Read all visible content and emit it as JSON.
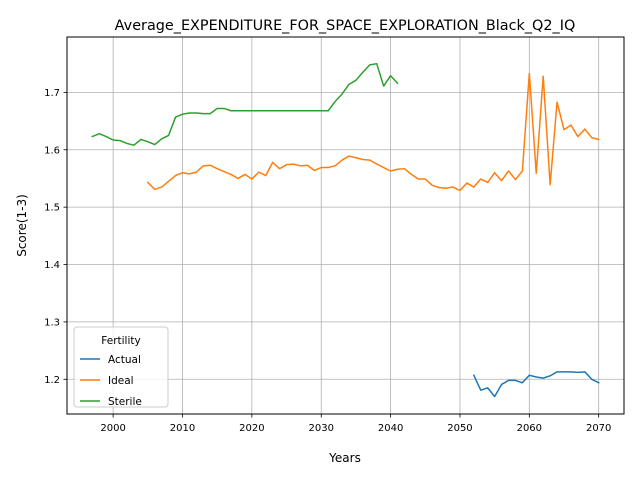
{
  "chart_data": {
    "type": "line",
    "title": "Average_EXPENDITURE_FOR_SPACE_EXPLORATION_Black_Q2_IQ",
    "xlabel": "Years",
    "ylabel": "Score(1-3)",
    "xlim": [
      1993.35,
      2073.65
    ],
    "ylim": [
      1.1395,
      1.7965
    ],
    "xticks": [
      2000,
      2010,
      2020,
      2030,
      2040,
      2050,
      2060,
      2070
    ],
    "xtick_labels": [
      "2000",
      "2010",
      "2020",
      "2030",
      "2040",
      "2050",
      "2060",
      "2070"
    ],
    "yticks": [
      1.2,
      1.3,
      1.4,
      1.5,
      1.6,
      1.7
    ],
    "ytick_labels": [
      "1.2",
      "1.3",
      "1.4",
      "1.5",
      "1.6",
      "1.7"
    ],
    "grid": true,
    "legend": {
      "title": "Fertility",
      "position": "lower-left"
    },
    "series": [
      {
        "name": "Actual",
        "color": "#1f77b4",
        "x": [
          2052,
          2053,
          2054,
          2055,
          2056,
          2057,
          2058,
          2059,
          2060,
          2061,
          2062,
          2063,
          2064,
          2065,
          2066,
          2067,
          2068,
          2069,
          2070
        ],
        "y": [
          1.207,
          1.181,
          1.185,
          1.17,
          1.191,
          1.198,
          1.198,
          1.194,
          1.207,
          1.204,
          1.202,
          1.206,
          1.213,
          1.213,
          1.213,
          1.212,
          1.213,
          1.2,
          1.194
        ]
      },
      {
        "name": "Ideal",
        "color": "#ff7f0e",
        "x": [
          2005,
          2006,
          2007,
          2008,
          2009,
          2010,
          2011,
          2012,
          2013,
          2014,
          2015,
          2016,
          2017,
          2018,
          2019,
          2020,
          2021,
          2022,
          2023,
          2024,
          2025,
          2026,
          2027,
          2028,
          2029,
          2030,
          2031,
          2032,
          2033,
          2034,
          2035,
          2036,
          2037,
          2038,
          2039,
          2040,
          2041,
          2042,
          2043,
          2044,
          2045,
          2046,
          2047,
          2048,
          2049,
          2050,
          2051,
          2052,
          2053,
          2054,
          2055,
          2056,
          2057,
          2058,
          2059,
          2060,
          2061,
          2062,
          2063,
          2064,
          2065,
          2066,
          2067,
          2068,
          2069,
          2070
        ],
        "y": [
          1.543,
          1.531,
          1.535,
          1.545,
          1.555,
          1.56,
          1.558,
          1.561,
          1.572,
          1.573,
          1.567,
          1.562,
          1.557,
          1.55,
          1.557,
          1.549,
          1.561,
          1.555,
          1.578,
          1.567,
          1.574,
          1.575,
          1.572,
          1.573,
          1.564,
          1.569,
          1.569,
          1.572,
          1.582,
          1.589,
          1.586,
          1.583,
          1.582,
          1.575,
          1.569,
          1.563,
          1.566,
          1.567,
          1.557,
          1.549,
          1.549,
          1.538,
          1.534,
          1.533,
          1.535,
          1.529,
          1.542,
          1.535,
          1.549,
          1.543,
          1.56,
          1.546,
          1.563,
          1.548,
          1.563,
          1.733,
          1.559,
          1.728,
          1.539,
          1.683,
          1.635,
          1.643,
          1.623,
          1.636,
          1.621,
          1.618
        ]
      },
      {
        "name": "Sterile",
        "color": "#2ca02c",
        "x": [
          1997,
          1998,
          1999,
          2000,
          2001,
          2002,
          2003,
          2004,
          2005,
          2006,
          2007,
          2008,
          2009,
          2010,
          2011,
          2012,
          2013,
          2014,
          2015,
          2016,
          2017,
          2018,
          2019,
          2020,
          2021,
          2022,
          2023,
          2024,
          2025,
          2026,
          2027,
          2028,
          2029,
          2030,
          2031,
          2032,
          2033,
          2034,
          2035,
          2036,
          2037,
          2038,
          2039,
          2040,
          2041
        ],
        "y": [
          1.623,
          1.628,
          1.623,
          1.617,
          1.616,
          1.611,
          1.608,
          1.618,
          1.614,
          1.609,
          1.619,
          1.625,
          1.657,
          1.662,
          1.664,
          1.664,
          1.663,
          1.663,
          1.672,
          1.672,
          1.668,
          1.668,
          1.668,
          1.668,
          1.668,
          1.668,
          1.668,
          1.668,
          1.668,
          1.668,
          1.668,
          1.668,
          1.668,
          1.668,
          1.668,
          1.684,
          1.697,
          1.714,
          1.721,
          1.735,
          1.748,
          1.75,
          1.711,
          1.729,
          1.716
        ]
      }
    ]
  }
}
